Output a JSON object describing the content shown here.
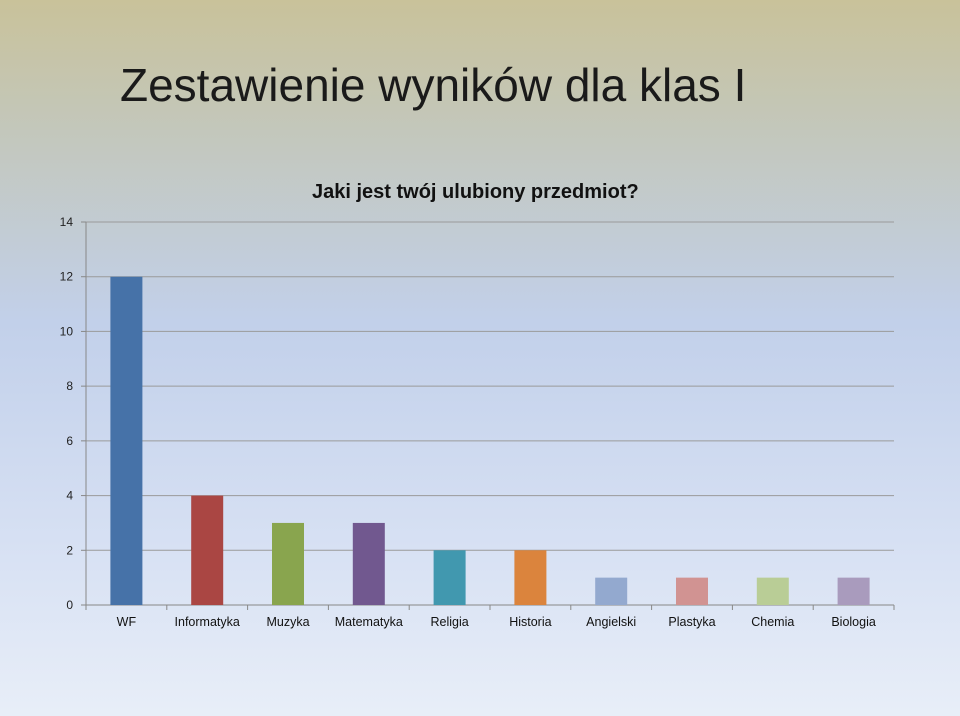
{
  "slide": {
    "title": "Zestawienie wyników dla klas I"
  },
  "chart_data": {
    "type": "bar",
    "title": "Jaki jest twój ulubiony przedmiot?",
    "xlabel": "",
    "ylabel": "",
    "categories": [
      "WF",
      "Informatyka",
      "Muzyka",
      "Matematyka",
      "Religia",
      "Historia",
      "Angielski",
      "Plastyka",
      "Chemia",
      "Biologia"
    ],
    "values": [
      12,
      4,
      3,
      3,
      2,
      2,
      1,
      1,
      1,
      1
    ],
    "colors": [
      "#4672a8",
      "#aa4643",
      "#89a54e",
      "#71588f",
      "#4198af",
      "#db843d",
      "#93a9cf",
      "#d19392",
      "#b9cd96",
      "#a99bbd"
    ],
    "yticks": [
      0,
      2,
      4,
      6,
      8,
      10,
      12,
      14
    ],
    "ylim": [
      0,
      14
    ],
    "grid": true,
    "legend": "none"
  }
}
